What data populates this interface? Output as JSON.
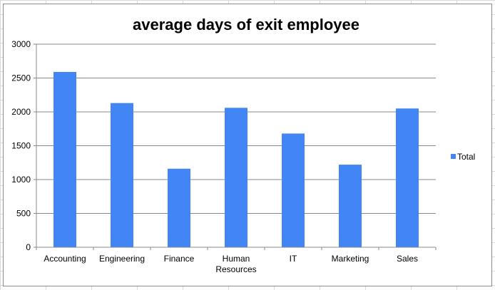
{
  "chart_data": {
    "type": "bar",
    "title": "average days of exit employee",
    "categories": [
      "Accounting",
      "Engineering",
      "Finance",
      "Human Resources",
      "IT",
      "Marketing",
      "Sales"
    ],
    "category_label_lines": [
      [
        "Accounting"
      ],
      [
        "Engineering"
      ],
      [
        "Finance"
      ],
      [
        "Human",
        "Resources"
      ],
      [
        "IT"
      ],
      [
        "Marketing"
      ],
      [
        "Sales"
      ]
    ],
    "series": [
      {
        "name": "Total",
        "values": [
          2590,
          2130,
          1160,
          2060,
          1680,
          1220,
          2050
        ],
        "color": "#4285f4"
      }
    ],
    "y_ticks": [
      "0",
      "500",
      "1000",
      "1500",
      "2000",
      "2500",
      "3000"
    ],
    "ylim": [
      0,
      3000
    ],
    "grid": true,
    "legend_position": "right"
  }
}
